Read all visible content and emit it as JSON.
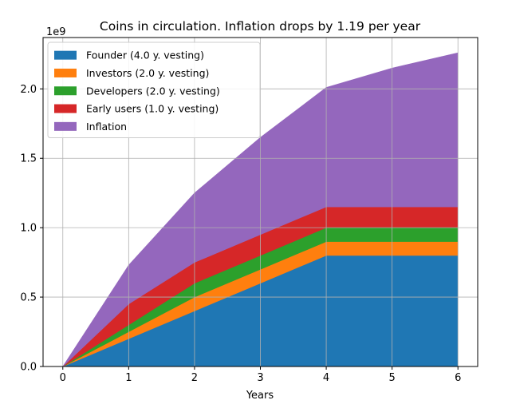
{
  "chart_data": {
    "type": "area",
    "stacked": true,
    "title": "Coins in circulation. Inflation drops by 1.19 per year",
    "xlabel": "Years",
    "ylabel": "",
    "y_offset_label": "1e9",
    "x": [
      0,
      1,
      2,
      3,
      4,
      5,
      6
    ],
    "xlim": [
      -0.3,
      6.3
    ],
    "ylim": [
      0,
      2.37
    ],
    "xticks": [
      "0",
      "1",
      "2",
      "3",
      "4",
      "5",
      "6"
    ],
    "yticks": [
      "0.0",
      "0.5",
      "1.0",
      "1.5",
      "2.0"
    ],
    "ytick_values": [
      0,
      0.5,
      1.0,
      1.5,
      2.0
    ],
    "y_unit": "1e9 coins",
    "grid": true,
    "legend_position": "upper-left",
    "series": [
      {
        "name": "Founder (4.0 y. vesting)",
        "color": "#1f77b4",
        "values": [
          0,
          0.2,
          0.4,
          0.6,
          0.8,
          0.8,
          0.8
        ]
      },
      {
        "name": "Investors (2.0 y. vesting)",
        "color": "#ff7f0e",
        "values": [
          0,
          0.05,
          0.1,
          0.1,
          0.1,
          0.1,
          0.1
        ]
      },
      {
        "name": "Developers (2.0 y. vesting)",
        "color": "#2ca02c",
        "values": [
          0,
          0.05,
          0.1,
          0.1,
          0.1,
          0.1,
          0.1
        ]
      },
      {
        "name": "Early users (1.0 y. vesting)",
        "color": "#d62728",
        "values": [
          0,
          0.15,
          0.15,
          0.15,
          0.15,
          0.15,
          0.15
        ]
      },
      {
        "name": "Inflation",
        "color": "#9467bd",
        "values": [
          0,
          0.28,
          0.5,
          0.7,
          0.86,
          1.0,
          1.11
        ]
      }
    ]
  }
}
